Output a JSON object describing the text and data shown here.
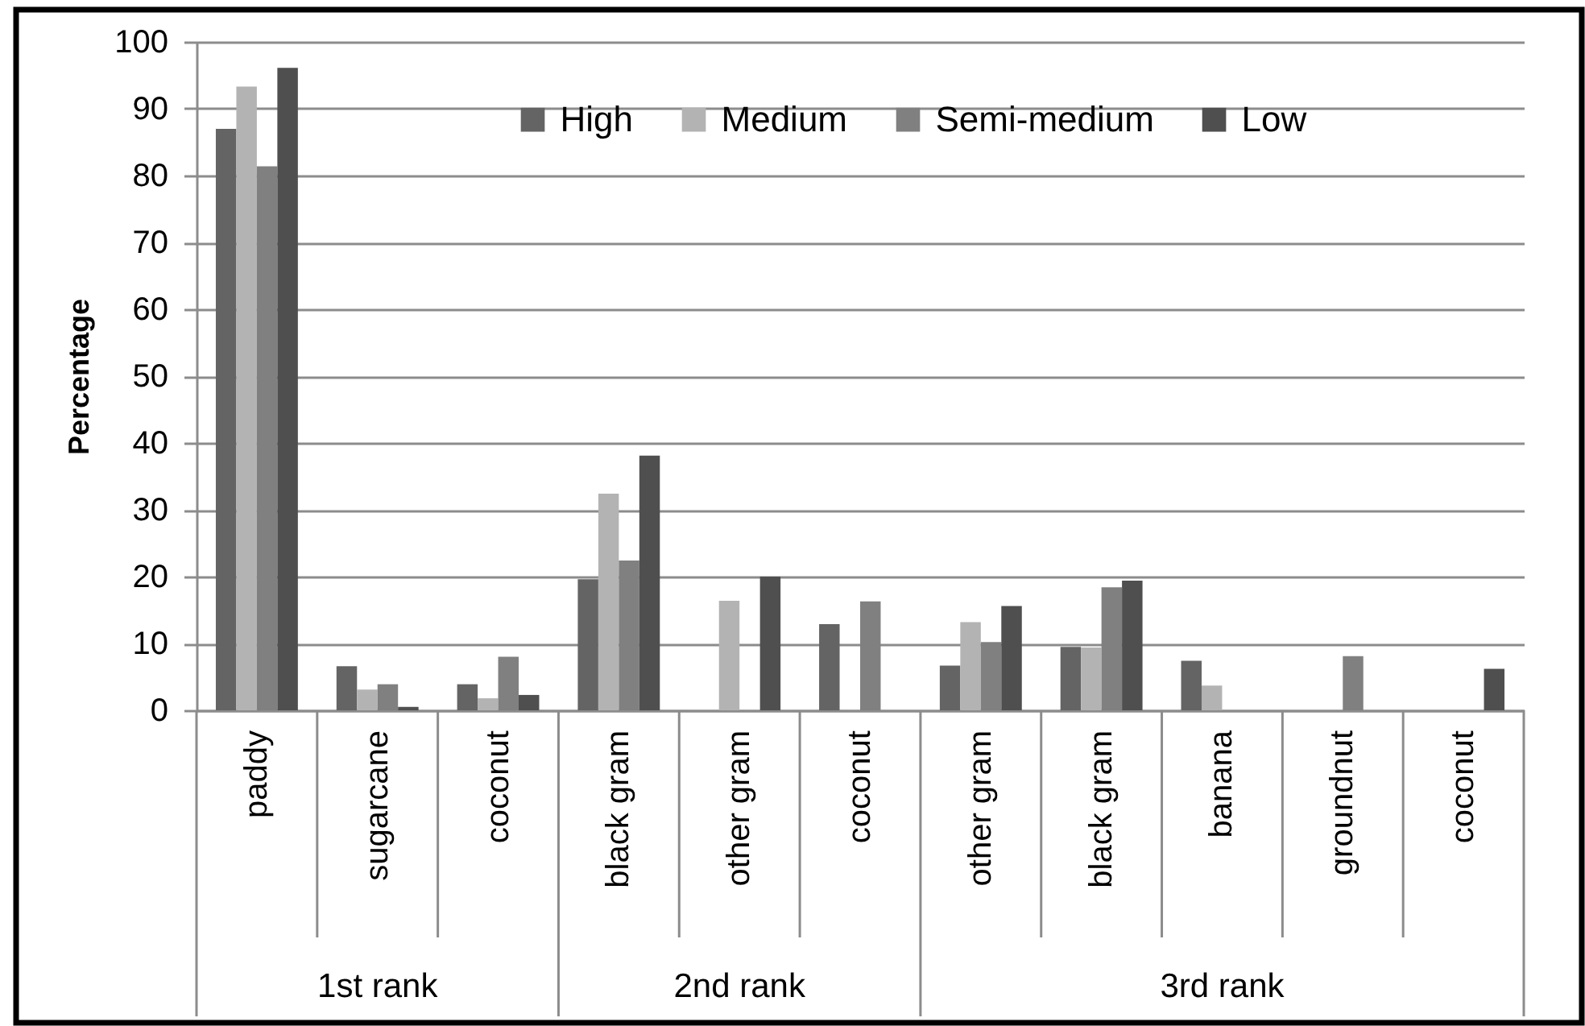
{
  "chart_data": {
    "type": "bar",
    "ylabel": "Percentage",
    "categories": [
      "paddy",
      "sugarcane",
      "coconut",
      "black gram",
      "other gram",
      "coconut",
      "other gram",
      "black gram",
      "banana",
      "groundnut",
      "coconut"
    ],
    "series": [
      {
        "name": "High",
        "color": "#646464",
        "values": [
          87.0,
          6.6,
          3.9,
          19.6,
          null,
          12.9,
          6.7,
          9.5,
          7.4,
          null,
          null
        ]
      },
      {
        "name": "Medium",
        "color": "#b3b3b3",
        "values": [
          93.3,
          3.1,
          1.8,
          32.4,
          16.4,
          null,
          13.2,
          9.4,
          3.7,
          null,
          null
        ]
      },
      {
        "name": "Semi-medium",
        "color": "#808080",
        "values": [
          81.4,
          3.9,
          8.0,
          22.4,
          null,
          16.3,
          10.2,
          18.4,
          null,
          8.1,
          null
        ]
      },
      {
        "name": "Low",
        "color": "#4f4f4f",
        "values": [
          96.1,
          0.5,
          2.3,
          38.1,
          20.0,
          null,
          15.6,
          19.4,
          null,
          null,
          6.2
        ]
      }
    ],
    "ylim": [
      0,
      100
    ],
    "yticks": [
      0,
      10,
      20,
      30,
      40,
      50,
      60,
      70,
      80,
      90,
      100
    ],
    "grid": "y",
    "legend": "top right",
    "annotations": [
      "1st rank",
      "2nd rank",
      "3rd rank"
    ]
  }
}
